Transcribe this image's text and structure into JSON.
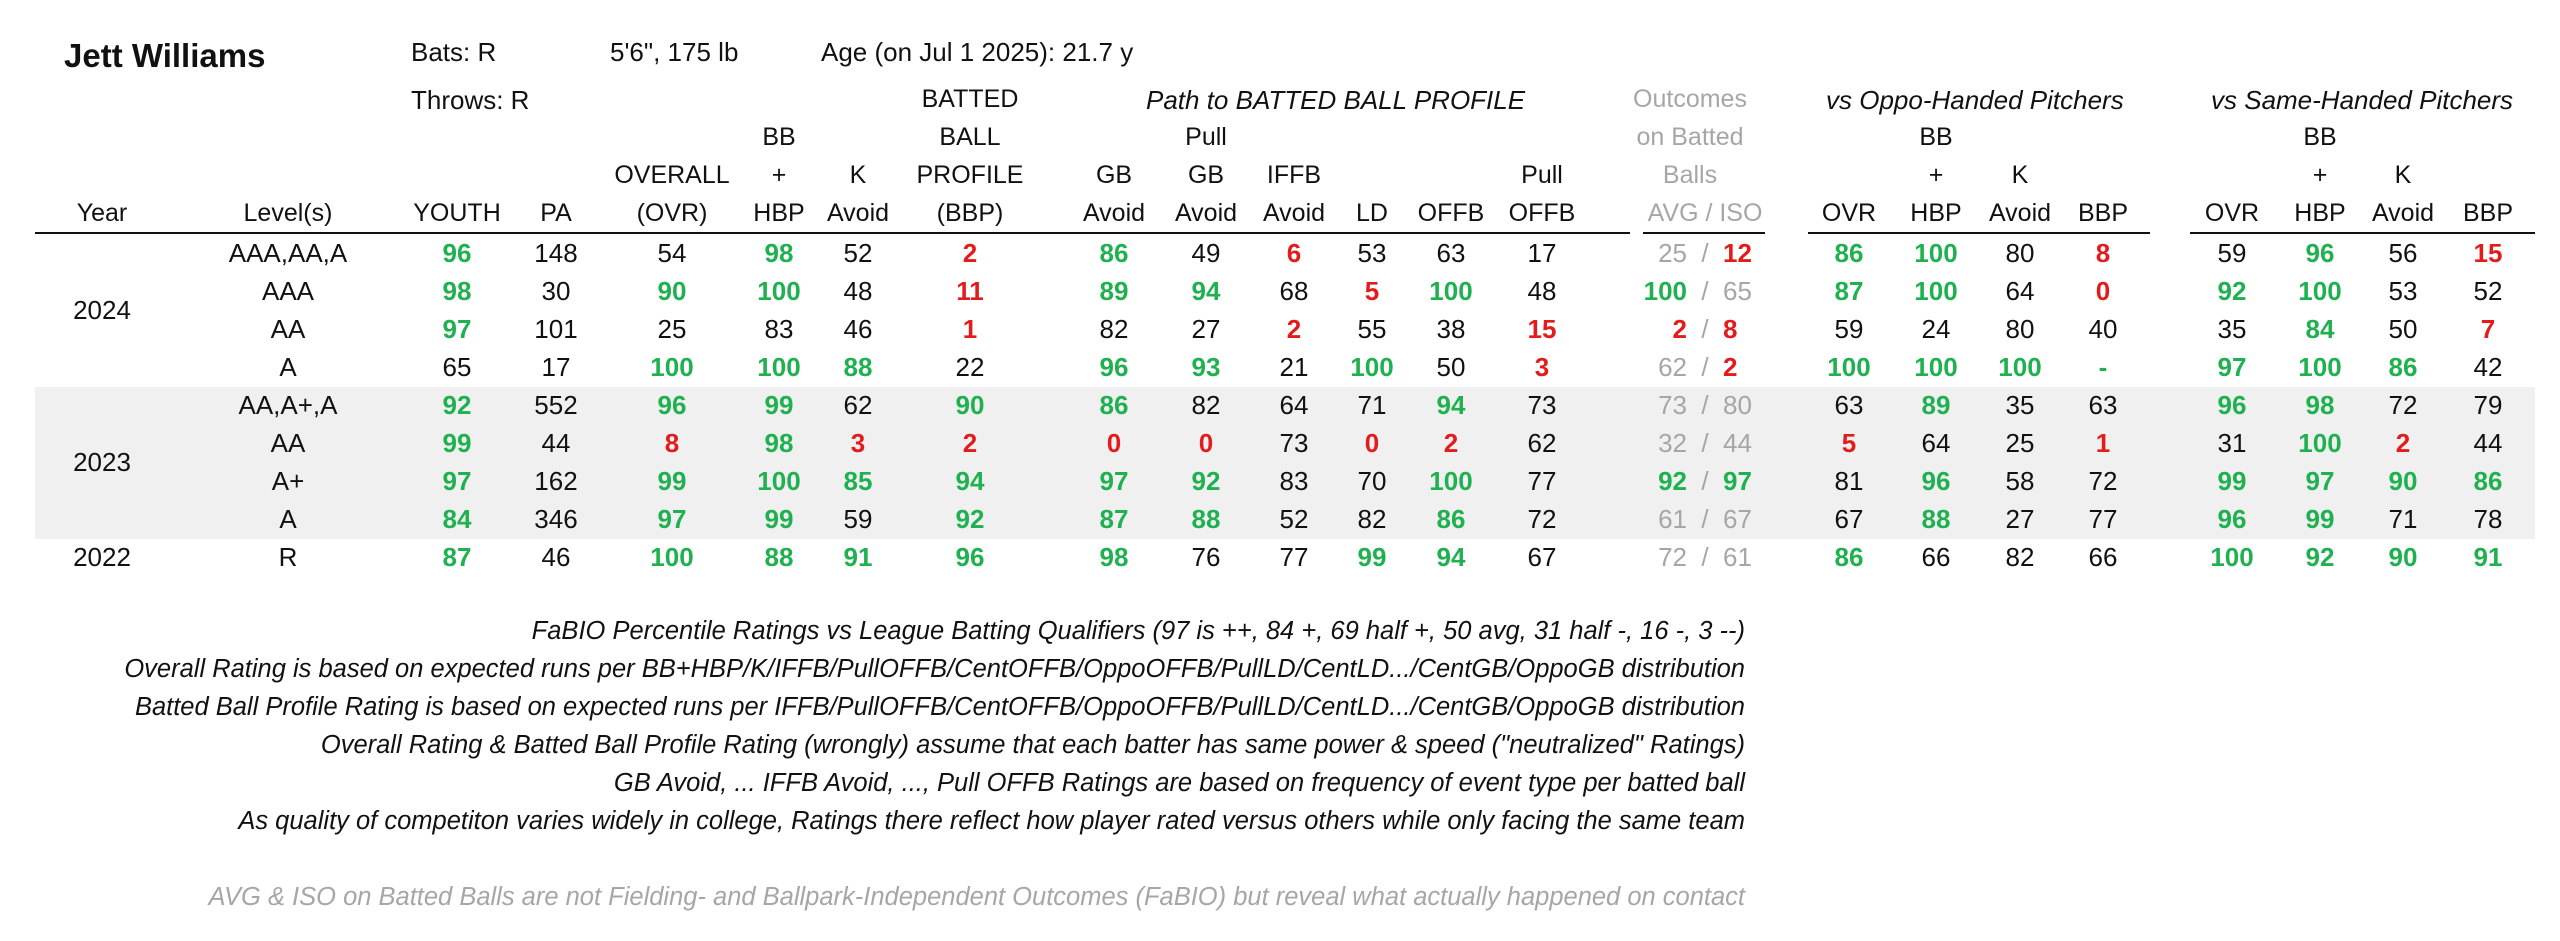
{
  "player": {
    "name": "Jett Williams",
    "bats": "Bats: R",
    "throws": "Throws: R",
    "size": "5'6\", 175 lb",
    "age": "Age (on Jul 1 2025): 21.7 y"
  },
  "group_headers": {
    "path": "Path to BATTED BALL PROFILE",
    "outcomes": [
      "Outcomes",
      "on Batted",
      "Balls"
    ],
    "oppo": "vs Oppo-Handed Pitchers",
    "same": "vs Same-Handed Pitchers"
  },
  "columns": {
    "year": [
      "Year"
    ],
    "level": [
      "Level(s)"
    ],
    "youth": [
      "YOUTH"
    ],
    "pa": [
      "PA"
    ],
    "ovr": [
      "OVERALL",
      "(OVR)"
    ],
    "bb": [
      "BB",
      "+",
      "HBP"
    ],
    "k": [
      "K",
      "Avoid"
    ],
    "bbp": [
      "BATTED",
      "BALL",
      "PROFILE",
      "(BBP)"
    ],
    "gb": [
      "GB",
      "Avoid"
    ],
    "pullgb": [
      "Pull",
      "GB",
      "Avoid"
    ],
    "iffb": [
      "IFFB",
      "Avoid"
    ],
    "ld": [
      "LD"
    ],
    "offb": [
      "OFFB"
    ],
    "pulloffb": [
      "Pull",
      "OFFB"
    ],
    "avgiso": [
      "AVG  /  ISO"
    ],
    "o_ovr": [
      "OVR"
    ],
    "o_bb": [
      "BB",
      "+",
      "HBP"
    ],
    "o_k": [
      "K",
      "Avoid"
    ],
    "o_bbp": [
      "BBP"
    ],
    "s_ovr": [
      "OVR"
    ],
    "s_bb": [
      "BB",
      "+",
      "HBP"
    ],
    "s_k": [
      "K",
      "Avoid"
    ],
    "s_bbp": [
      "BBP"
    ]
  },
  "year_labels": [
    "2024",
    "2023",
    "2022"
  ],
  "rows": [
    {
      "level": "AAA,AA,A",
      "youth": [
        "96",
        "g"
      ],
      "pa": "148",
      "ovr": [
        "54",
        "n"
      ],
      "bb": [
        "98",
        "g"
      ],
      "k": [
        "52",
        "n"
      ],
      "bbp": [
        "2",
        "r"
      ],
      "gb": [
        "86",
        "g"
      ],
      "pullgb": [
        "49",
        "n"
      ],
      "iffb": [
        "6",
        "r"
      ],
      "ld": [
        "53",
        "n"
      ],
      "offb": [
        "63",
        "n"
      ],
      "pulloffb": [
        "17",
        "n"
      ],
      "avg": [
        "25",
        "gy"
      ],
      "iso": [
        "12",
        "r"
      ],
      "o_ovr": [
        "86",
        "g"
      ],
      "o_bb": [
        "100",
        "g"
      ],
      "o_k": [
        "80",
        "n"
      ],
      "o_bbp": [
        "8",
        "r"
      ],
      "s_ovr": [
        "59",
        "n"
      ],
      "s_bb": [
        "96",
        "g"
      ],
      "s_k": [
        "56",
        "n"
      ],
      "s_bbp": [
        "15",
        "r"
      ]
    },
    {
      "level": "AAA",
      "youth": [
        "98",
        "g"
      ],
      "pa": "30",
      "ovr": [
        "90",
        "g"
      ],
      "bb": [
        "100",
        "g"
      ],
      "k": [
        "48",
        "n"
      ],
      "bbp": [
        "11",
        "r"
      ],
      "gb": [
        "89",
        "g"
      ],
      "pullgb": [
        "94",
        "g"
      ],
      "iffb": [
        "68",
        "n"
      ],
      "ld": [
        "5",
        "r"
      ],
      "offb": [
        "100",
        "g"
      ],
      "pulloffb": [
        "48",
        "n"
      ],
      "avg": [
        "100",
        "g"
      ],
      "iso": [
        "65",
        "gy"
      ],
      "o_ovr": [
        "87",
        "g"
      ],
      "o_bb": [
        "100",
        "g"
      ],
      "o_k": [
        "64",
        "n"
      ],
      "o_bbp": [
        "0",
        "r"
      ],
      "s_ovr": [
        "92",
        "g"
      ],
      "s_bb": [
        "100",
        "g"
      ],
      "s_k": [
        "53",
        "n"
      ],
      "s_bbp": [
        "52",
        "n"
      ]
    },
    {
      "level": "AA",
      "youth": [
        "97",
        "g"
      ],
      "pa": "101",
      "ovr": [
        "25",
        "n"
      ],
      "bb": [
        "83",
        "n"
      ],
      "k": [
        "46",
        "n"
      ],
      "bbp": [
        "1",
        "r"
      ],
      "gb": [
        "82",
        "n"
      ],
      "pullgb": [
        "27",
        "n"
      ],
      "iffb": [
        "2",
        "r"
      ],
      "ld": [
        "55",
        "n"
      ],
      "offb": [
        "38",
        "n"
      ],
      "pulloffb": [
        "15",
        "r"
      ],
      "avg": [
        "2",
        "r"
      ],
      "iso": [
        "8",
        "r"
      ],
      "o_ovr": [
        "59",
        "n"
      ],
      "o_bb": [
        "24",
        "n"
      ],
      "o_k": [
        "80",
        "n"
      ],
      "o_bbp": [
        "40",
        "n"
      ],
      "s_ovr": [
        "35",
        "n"
      ],
      "s_bb": [
        "84",
        "g"
      ],
      "s_k": [
        "50",
        "n"
      ],
      "s_bbp": [
        "7",
        "r"
      ]
    },
    {
      "level": "A",
      "youth": [
        "65",
        "n"
      ],
      "pa": "17",
      "ovr": [
        "100",
        "g"
      ],
      "bb": [
        "100",
        "g"
      ],
      "k": [
        "88",
        "g"
      ],
      "bbp": [
        "22",
        "n"
      ],
      "gb": [
        "96",
        "g"
      ],
      "pullgb": [
        "93",
        "g"
      ],
      "iffb": [
        "21",
        "n"
      ],
      "ld": [
        "100",
        "g"
      ],
      "offb": [
        "50",
        "n"
      ],
      "pulloffb": [
        "3",
        "r"
      ],
      "avg": [
        "62",
        "gy"
      ],
      "iso": [
        "2",
        "r"
      ],
      "o_ovr": [
        "100",
        "g"
      ],
      "o_bb": [
        "100",
        "g"
      ],
      "o_k": [
        "100",
        "g"
      ],
      "o_bbp": [
        "-",
        "g"
      ],
      "s_ovr": [
        "97",
        "g"
      ],
      "s_bb": [
        "100",
        "g"
      ],
      "s_k": [
        "86",
        "g"
      ],
      "s_bbp": [
        "42",
        "n"
      ]
    },
    {
      "level": "AA,A+,A",
      "youth": [
        "92",
        "g"
      ],
      "pa": "552",
      "ovr": [
        "96",
        "g"
      ],
      "bb": [
        "99",
        "g"
      ],
      "k": [
        "62",
        "n"
      ],
      "bbp": [
        "90",
        "g"
      ],
      "gb": [
        "86",
        "g"
      ],
      "pullgb": [
        "82",
        "n"
      ],
      "iffb": [
        "64",
        "n"
      ],
      "ld": [
        "71",
        "n"
      ],
      "offb": [
        "94",
        "g"
      ],
      "pulloffb": [
        "73",
        "n"
      ],
      "avg": [
        "73",
        "gy"
      ],
      "iso": [
        "80",
        "gy"
      ],
      "o_ovr": [
        "63",
        "n"
      ],
      "o_bb": [
        "89",
        "g"
      ],
      "o_k": [
        "35",
        "n"
      ],
      "o_bbp": [
        "63",
        "n"
      ],
      "s_ovr": [
        "96",
        "g"
      ],
      "s_bb": [
        "98",
        "g"
      ],
      "s_k": [
        "72",
        "n"
      ],
      "s_bbp": [
        "79",
        "n"
      ]
    },
    {
      "level": "AA",
      "youth": [
        "99",
        "g"
      ],
      "pa": "44",
      "ovr": [
        "8",
        "r"
      ],
      "bb": [
        "98",
        "g"
      ],
      "k": [
        "3",
        "r"
      ],
      "bbp": [
        "2",
        "r"
      ],
      "gb": [
        "0",
        "r"
      ],
      "pullgb": [
        "0",
        "r"
      ],
      "iffb": [
        "73",
        "n"
      ],
      "ld": [
        "0",
        "r"
      ],
      "offb": [
        "2",
        "r"
      ],
      "pulloffb": [
        "62",
        "n"
      ],
      "avg": [
        "32",
        "gy"
      ],
      "iso": [
        "44",
        "gy"
      ],
      "o_ovr": [
        "5",
        "r"
      ],
      "o_bb": [
        "64",
        "n"
      ],
      "o_k": [
        "25",
        "n"
      ],
      "o_bbp": [
        "1",
        "r"
      ],
      "s_ovr": [
        "31",
        "n"
      ],
      "s_bb": [
        "100",
        "g"
      ],
      "s_k": [
        "2",
        "r"
      ],
      "s_bbp": [
        "44",
        "n"
      ]
    },
    {
      "level": "A+",
      "youth": [
        "97",
        "g"
      ],
      "pa": "162",
      "ovr": [
        "99",
        "g"
      ],
      "bb": [
        "100",
        "g"
      ],
      "k": [
        "85",
        "g"
      ],
      "bbp": [
        "94",
        "g"
      ],
      "gb": [
        "97",
        "g"
      ],
      "pullgb": [
        "92",
        "g"
      ],
      "iffb": [
        "83",
        "n"
      ],
      "ld": [
        "70",
        "n"
      ],
      "offb": [
        "100",
        "g"
      ],
      "pulloffb": [
        "77",
        "n"
      ],
      "avg": [
        "92",
        "g"
      ],
      "iso": [
        "97",
        "g"
      ],
      "o_ovr": [
        "81",
        "n"
      ],
      "o_bb": [
        "96",
        "g"
      ],
      "o_k": [
        "58",
        "n"
      ],
      "o_bbp": [
        "72",
        "n"
      ],
      "s_ovr": [
        "99",
        "g"
      ],
      "s_bb": [
        "97",
        "g"
      ],
      "s_k": [
        "90",
        "g"
      ],
      "s_bbp": [
        "86",
        "g"
      ]
    },
    {
      "level": "A",
      "youth": [
        "84",
        "g"
      ],
      "pa": "346",
      "ovr": [
        "97",
        "g"
      ],
      "bb": [
        "99",
        "g"
      ],
      "k": [
        "59",
        "n"
      ],
      "bbp": [
        "92",
        "g"
      ],
      "gb": [
        "87",
        "g"
      ],
      "pullgb": [
        "88",
        "g"
      ],
      "iffb": [
        "52",
        "n"
      ],
      "ld": [
        "82",
        "n"
      ],
      "offb": [
        "86",
        "g"
      ],
      "pulloffb": [
        "72",
        "n"
      ],
      "avg": [
        "61",
        "gy"
      ],
      "iso": [
        "67",
        "gy"
      ],
      "o_ovr": [
        "67",
        "n"
      ],
      "o_bb": [
        "88",
        "g"
      ],
      "o_k": [
        "27",
        "n"
      ],
      "o_bbp": [
        "77",
        "n"
      ],
      "s_ovr": [
        "96",
        "g"
      ],
      "s_bb": [
        "99",
        "g"
      ],
      "s_k": [
        "71",
        "n"
      ],
      "s_bbp": [
        "78",
        "n"
      ]
    },
    {
      "level": "R",
      "youth": [
        "87",
        "g"
      ],
      "pa": "46",
      "ovr": [
        "100",
        "g"
      ],
      "bb": [
        "88",
        "g"
      ],
      "k": [
        "91",
        "g"
      ],
      "bbp": [
        "96",
        "g"
      ],
      "gb": [
        "98",
        "g"
      ],
      "pullgb": [
        "76",
        "n"
      ],
      "iffb": [
        "77",
        "n"
      ],
      "ld": [
        "99",
        "g"
      ],
      "offb": [
        "94",
        "g"
      ],
      "pulloffb": [
        "67",
        "n"
      ],
      "avg": [
        "72",
        "gy"
      ],
      "iso": [
        "61",
        "gy"
      ],
      "o_ovr": [
        "86",
        "g"
      ],
      "o_bb": [
        "66",
        "n"
      ],
      "o_k": [
        "82",
        "n"
      ],
      "o_bbp": [
        "66",
        "n"
      ],
      "s_ovr": [
        "100",
        "g"
      ],
      "s_bb": [
        "92",
        "g"
      ],
      "s_k": [
        "90",
        "g"
      ],
      "s_bbp": [
        "91",
        "g"
      ]
    }
  ],
  "notes": [
    "FaBIO Percentile Ratings vs League Batting Qualifiers (97 is ++, 84 +, 69 half +, 50 avg, 31 half -, 16 -, 3 --)",
    "Overall Rating is based on expected runs per BB+HBP/K/IFFB/PullOFFB/CentOFFB/OppoOFFB/PullLD/CentLD.../CentGB/OppoGB distribution",
    "Batted Ball Profile Rating is based on expected runs per IFFB/PullOFFB/CentOFFB/OppoOFFB/PullLD/CentLD.../CentGB/OppoGB distribution",
    "Overall Rating & Batted Ball Profile Rating (wrongly) assume that each batter has same power & speed (\"neutralized\" Ratings)",
    "GB Avoid, ... IFFB Avoid, ..., Pull OFFB Ratings are based on frequency of event type per batted ball",
    "As quality of competiton varies widely in college, Ratings there reflect how player rated versus others while only facing the same team",
    "AVG & ISO on Batted Balls are not Fielding- and Ballpark-Independent Outcomes (FaBIO) but reveal what actually happened on contact"
  ],
  "colors": {
    "green": "#1fb150",
    "red": "#e31b1b",
    "gray": "#a6a6a6",
    "band": "#f0f0f0"
  }
}
